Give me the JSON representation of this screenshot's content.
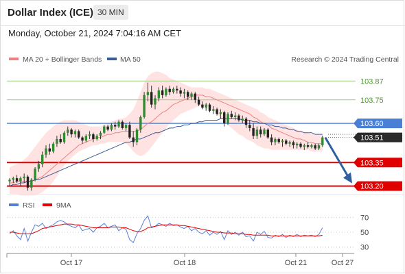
{
  "header": {
    "title": "Dollar Index (ICE)",
    "timeframe": "30 MIN",
    "datetime": "Monday, October 21, 2024 7:04:16 AM CET"
  },
  "legend": {
    "ma20_label": "MA 20 + Bollinger Bands",
    "ma50_label": "MA 50",
    "rsi_label": "RSI",
    "ma9_label": "9MA",
    "credit": "Research © 2024 Trading Central"
  },
  "colors": {
    "ma20": "#f08080",
    "ma50": "#3a5a98",
    "bands": "#ffe3e3",
    "up_candle": "#2e8b2e",
    "down_candle": "#222222",
    "resistance": "#9acd7a",
    "pivot": "#4a7fd6",
    "support": "#e00000",
    "arrow": "#2f5f9f",
    "rsi": "#5a7fd6",
    "rsi_ma": "#e00000"
  },
  "chart_data": [
    {
      "type": "candlestick",
      "ylim": [
        103.15,
        103.95
      ],
      "x_ticks": [
        "Oct 17",
        "Oct 18",
        "Oct 21",
        "Oct 27"
      ],
      "levels": [
        {
          "value": 103.87,
          "label": "103.87",
          "kind": "resistance"
        },
        {
          "value": 103.75,
          "label": "103.75",
          "kind": "resistance"
        },
        {
          "value": 103.6,
          "label": "103.60",
          "kind": "pivot"
        },
        {
          "value": 103.51,
          "label": "103.51",
          "kind": "last"
        },
        {
          "value": 103.35,
          "label": "103.35",
          "kind": "support"
        },
        {
          "value": 103.2,
          "label": "103.20",
          "kind": "support"
        }
      ],
      "last_price": 103.51,
      "forecast_target": 103.2,
      "candles": [
        [
          103.23,
          103.25,
          103.2,
          103.24
        ],
        [
          103.24,
          103.26,
          103.22,
          103.25
        ],
        [
          103.25,
          103.27,
          103.22,
          103.23
        ],
        [
          103.23,
          103.26,
          103.2,
          103.25
        ],
        [
          103.25,
          103.28,
          103.22,
          103.26
        ],
        [
          103.26,
          103.27,
          103.17,
          103.19
        ],
        [
          103.19,
          103.25,
          103.17,
          103.24
        ],
        [
          103.24,
          103.32,
          103.23,
          103.31
        ],
        [
          103.31,
          103.36,
          103.29,
          103.34
        ],
        [
          103.34,
          103.42,
          103.32,
          103.4
        ],
        [
          103.4,
          103.46,
          103.38,
          103.44
        ],
        [
          103.44,
          103.47,
          103.4,
          103.42
        ],
        [
          103.42,
          103.48,
          103.41,
          103.47
        ],
        [
          103.47,
          103.52,
          103.45,
          103.5
        ],
        [
          103.5,
          103.53,
          103.47,
          103.48
        ],
        [
          103.48,
          103.55,
          103.47,
          103.54
        ],
        [
          103.54,
          103.58,
          103.52,
          103.56
        ],
        [
          103.56,
          103.57,
          103.51,
          103.53
        ],
        [
          103.53,
          103.56,
          103.51,
          103.55
        ],
        [
          103.55,
          103.56,
          103.5,
          103.51
        ],
        [
          103.51,
          103.52,
          103.47,
          103.49
        ],
        [
          103.49,
          103.53,
          103.48,
          103.52
        ],
        [
          103.52,
          103.55,
          103.5,
          103.53
        ],
        [
          103.53,
          103.54,
          103.48,
          103.5
        ],
        [
          103.5,
          103.53,
          103.49,
          103.52
        ],
        [
          103.52,
          103.55,
          103.5,
          103.54
        ],
        [
          103.54,
          103.59,
          103.53,
          103.58
        ],
        [
          103.58,
          103.59,
          103.55,
          103.56
        ],
        [
          103.56,
          103.6,
          103.55,
          103.59
        ],
        [
          103.59,
          103.61,
          103.56,
          103.58
        ],
        [
          103.58,
          103.62,
          103.57,
          103.61
        ],
        [
          103.61,
          103.62,
          103.56,
          103.57
        ],
        [
          103.57,
          103.6,
          103.55,
          103.59
        ],
        [
          103.59,
          103.61,
          103.5,
          103.51
        ],
        [
          103.51,
          103.55,
          103.45,
          103.48
        ],
        [
          103.48,
          103.57,
          103.46,
          103.56
        ],
        [
          103.56,
          103.65,
          103.54,
          103.64
        ],
        [
          103.64,
          103.8,
          103.63,
          103.78
        ],
        [
          103.78,
          103.86,
          103.74,
          103.8
        ],
        [
          103.8,
          103.84,
          103.7,
          103.72
        ],
        [
          103.72,
          103.78,
          103.69,
          103.76
        ],
        [
          103.76,
          103.83,
          103.74,
          103.81
        ],
        [
          103.81,
          103.84,
          103.76,
          103.78
        ],
        [
          103.78,
          103.83,
          103.77,
          103.82
        ],
        [
          103.82,
          103.84,
          103.78,
          103.8
        ],
        [
          103.8,
          103.83,
          103.79,
          103.82
        ],
        [
          103.82,
          103.84,
          103.79,
          103.81
        ],
        [
          103.81,
          103.83,
          103.77,
          103.79
        ],
        [
          103.79,
          103.82,
          103.76,
          103.8
        ],
        [
          103.8,
          103.81,
          103.75,
          103.77
        ],
        [
          103.77,
          103.8,
          103.75,
          103.79
        ],
        [
          103.79,
          103.8,
          103.73,
          103.75
        ],
        [
          103.75,
          103.77,
          103.71,
          103.72
        ],
        [
          103.72,
          103.74,
          103.69,
          103.7
        ],
        [
          103.7,
          103.73,
          103.68,
          103.72
        ],
        [
          103.72,
          103.73,
          103.67,
          103.68
        ],
        [
          103.68,
          103.71,
          103.66,
          103.69
        ],
        [
          103.69,
          103.7,
          103.65,
          103.66
        ],
        [
          103.66,
          103.69,
          103.63,
          103.67
        ],
        [
          103.67,
          103.68,
          103.58,
          103.6
        ],
        [
          103.6,
          103.67,
          103.59,
          103.66
        ],
        [
          103.66,
          103.68,
          103.63,
          103.64
        ],
        [
          103.64,
          103.67,
          103.62,
          103.65
        ],
        [
          103.65,
          103.66,
          103.61,
          103.62
        ],
        [
          103.62,
          103.65,
          103.6,
          103.63
        ],
        [
          103.63,
          103.64,
          103.57,
          103.59
        ],
        [
          103.59,
          103.62,
          103.55,
          103.57
        ],
        [
          103.57,
          103.6,
          103.5,
          103.52
        ],
        [
          103.52,
          103.58,
          103.5,
          103.56
        ],
        [
          103.56,
          103.58,
          103.51,
          103.53
        ],
        [
          103.53,
          103.57,
          103.52,
          103.56
        ],
        [
          103.56,
          103.57,
          103.5,
          103.51
        ],
        [
          103.51,
          103.53,
          103.46,
          103.48
        ],
        [
          103.48,
          103.51,
          103.46,
          103.5
        ],
        [
          103.5,
          103.51,
          103.47,
          103.48
        ],
        [
          103.48,
          103.5,
          103.45,
          103.49
        ],
        [
          103.49,
          103.5,
          103.46,
          103.47
        ],
        [
          103.47,
          103.49,
          103.45,
          103.48
        ],
        [
          103.48,
          103.49,
          103.44,
          103.46
        ],
        [
          103.46,
          103.48,
          103.44,
          103.47
        ],
        [
          103.47,
          103.48,
          103.44,
          103.45
        ],
        [
          103.45,
          103.47,
          103.43,
          103.46
        ],
        [
          103.46,
          103.48,
          103.44,
          103.45
        ],
        [
          103.45,
          103.47,
          103.44,
          103.46
        ],
        [
          103.46,
          103.47,
          103.43,
          103.44
        ],
        [
          103.44,
          103.47,
          103.43,
          103.46
        ],
        [
          103.46,
          103.52,
          103.45,
          103.51
        ]
      ],
      "ma20": [
        103.22,
        103.22,
        103.23,
        103.23,
        103.23,
        103.23,
        103.23,
        103.24,
        103.25,
        103.26,
        103.28,
        103.3,
        103.32,
        103.34,
        103.36,
        103.38,
        103.4,
        103.42,
        103.44,
        103.46,
        103.47,
        103.48,
        103.49,
        103.5,
        103.51,
        103.51,
        103.52,
        103.53,
        103.53,
        103.54,
        103.54,
        103.55,
        103.55,
        103.55,
        103.55,
        103.55,
        103.56,
        103.58,
        103.6,
        103.61,
        103.63,
        103.65,
        103.67,
        103.68,
        103.7,
        103.72,
        103.73,
        103.74,
        103.75,
        103.76,
        103.77,
        103.78,
        103.78,
        103.78,
        103.77,
        103.77,
        103.76,
        103.75,
        103.74,
        103.73,
        103.72,
        103.71,
        103.7,
        103.69,
        103.68,
        103.67,
        103.66,
        103.64,
        103.63,
        103.61,
        103.6,
        103.59,
        103.57,
        103.56,
        103.55,
        103.54,
        103.53,
        103.52,
        103.51,
        103.5,
        103.5,
        103.49,
        103.48,
        103.48,
        103.47,
        103.47,
        103.47
      ],
      "ma50": [
        103.2,
        103.21,
        103.21,
        103.22,
        103.22,
        103.23,
        103.23,
        103.24,
        103.24,
        103.25,
        103.26,
        103.27,
        103.28,
        103.29,
        103.3,
        103.31,
        103.32,
        103.33,
        103.34,
        103.35,
        103.36,
        103.37,
        103.38,
        103.39,
        103.4,
        103.41,
        103.42,
        103.43,
        103.44,
        103.45,
        103.46,
        103.47,
        103.48,
        103.48,
        103.49,
        103.5,
        103.5,
        103.51,
        103.52,
        103.53,
        103.54,
        103.54,
        103.55,
        103.56,
        103.57,
        103.57,
        103.58,
        103.58,
        103.59,
        103.59,
        103.6,
        103.6,
        103.61,
        103.61,
        103.62,
        103.62,
        103.62,
        103.62,
        103.63,
        103.63,
        103.63,
        103.63,
        103.63,
        103.63,
        103.62,
        103.62,
        103.62,
        103.61,
        103.61,
        103.6,
        103.6,
        103.59,
        103.59,
        103.58,
        103.58,
        103.57,
        103.57,
        103.56,
        103.56,
        103.55,
        103.55,
        103.54,
        103.54,
        103.54,
        103.53,
        103.53,
        103.53
      ],
      "band_upper": [
        103.32,
        103.33,
        103.34,
        103.35,
        103.37,
        103.39,
        103.42,
        103.45,
        103.48,
        103.51,
        103.54,
        103.56,
        103.58,
        103.6,
        103.61,
        103.62,
        103.62,
        103.62,
        103.62,
        103.61,
        103.6,
        103.59,
        103.58,
        103.58,
        103.58,
        103.58,
        103.59,
        103.6,
        103.61,
        103.62,
        103.63,
        103.63,
        103.64,
        103.66,
        103.69,
        103.74,
        103.8,
        103.86,
        103.9,
        103.92,
        103.93,
        103.93,
        103.92,
        103.91,
        103.89,
        103.88,
        103.87,
        103.86,
        103.85,
        103.84,
        103.83,
        103.83,
        103.83,
        103.83,
        103.82,
        103.82,
        103.81,
        103.8,
        103.79,
        103.78,
        103.77,
        103.76,
        103.75,
        103.74,
        103.73,
        103.72,
        103.71,
        103.7,
        103.69,
        103.67,
        103.66,
        103.64,
        103.63,
        103.62,
        103.61,
        103.6,
        103.59,
        103.58,
        103.57,
        103.56,
        103.55,
        103.54,
        103.54,
        103.53,
        103.53,
        103.53,
        103.53
      ],
      "band_lower": [
        103.15,
        103.15,
        103.15,
        103.14,
        103.14,
        103.14,
        103.14,
        103.14,
        103.15,
        103.16,
        103.18,
        103.2,
        103.23,
        103.26,
        103.3,
        103.33,
        103.36,
        103.38,
        103.4,
        103.42,
        103.43,
        103.44,
        103.45,
        103.46,
        103.46,
        103.47,
        103.47,
        103.48,
        103.48,
        103.48,
        103.48,
        103.48,
        103.47,
        103.45,
        103.42,
        103.4,
        103.39,
        103.4,
        103.42,
        103.45,
        103.48,
        103.51,
        103.54,
        103.57,
        103.6,
        103.62,
        103.64,
        103.66,
        103.67,
        103.68,
        103.69,
        103.7,
        103.71,
        103.71,
        103.71,
        103.7,
        103.68,
        103.66,
        103.63,
        103.61,
        103.59,
        103.57,
        103.55,
        103.53,
        103.52,
        103.5,
        103.49,
        103.48,
        103.46,
        103.45,
        103.44,
        103.44,
        103.43,
        103.43,
        103.43,
        103.43,
        103.43,
        103.43,
        103.43,
        103.43,
        103.43,
        103.43,
        103.43,
        103.42,
        103.42,
        103.42,
        103.42
      ]
    },
    {
      "type": "line",
      "ylim": [
        25,
        75
      ],
      "y_ticks": [
        70,
        50,
        30
      ],
      "series": [
        {
          "name": "RSI",
          "values": [
            48,
            52,
            45,
            40,
            55,
            38,
            50,
            60,
            58,
            62,
            55,
            58,
            60,
            64,
            66,
            64,
            60,
            58,
            56,
            60,
            52,
            54,
            55,
            50,
            56,
            58,
            62,
            56,
            58,
            60,
            52,
            56,
            54,
            40,
            36,
            48,
            55,
            66,
            72,
            56,
            58,
            62,
            60,
            58,
            62,
            59,
            60,
            57,
            55,
            58,
            52,
            55,
            50,
            48,
            52,
            46,
            50,
            47,
            51,
            40,
            52,
            47,
            50,
            46,
            50,
            44,
            45,
            38,
            50,
            47,
            51,
            43,
            42,
            46,
            44,
            47,
            43,
            46,
            44,
            47,
            44,
            46,
            45,
            46,
            44,
            47,
            56
          ]
        },
        {
          "name": "9MA",
          "values": [
            50,
            50,
            49,
            48,
            48,
            48,
            48,
            50,
            52,
            55,
            56,
            57,
            58,
            59,
            60,
            61,
            61,
            61,
            60,
            60,
            59,
            58,
            57,
            56,
            56,
            56,
            56,
            56,
            57,
            57,
            57,
            56,
            56,
            54,
            52,
            51,
            51,
            53,
            56,
            57,
            58,
            59,
            60,
            60,
            60,
            60,
            60,
            59,
            59,
            58,
            57,
            56,
            55,
            54,
            53,
            52,
            51,
            50,
            50,
            49,
            49,
            49,
            48,
            48,
            48,
            47,
            47,
            46,
            46,
            46,
            46,
            46,
            45,
            45,
            45,
            45,
            45,
            45,
            45,
            45,
            45,
            45,
            45,
            45,
            45,
            45,
            46
          ]
        }
      ]
    }
  ]
}
